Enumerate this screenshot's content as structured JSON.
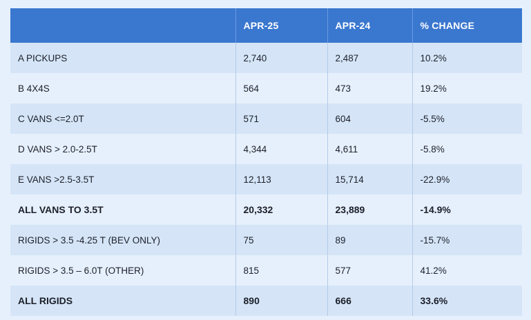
{
  "header": {
    "col_label": "",
    "col_apr25": "APR-25",
    "col_apr24": "APR-24",
    "col_change": "% CHANGE"
  },
  "rows": [
    {
      "label": "A PICKUPS",
      "apr25": "2,740",
      "apr24": "2,487",
      "change": "10.2%"
    },
    {
      "label": "B 4X4S",
      "apr25": "564",
      "apr24": "473",
      "change": "19.2%"
    },
    {
      "label": "C VANS <=2.0T",
      "apr25": "571",
      "apr24": "604",
      "change": "-5.5%"
    },
    {
      "label": "D VANS > 2.0-2.5T",
      "apr25": "4,344",
      "apr24": "4,611",
      "change": "-5.8%"
    },
    {
      "label": "E VANS >2.5-3.5T",
      "apr25": "12,113",
      "apr24": "15,714",
      "change": "-22.9%"
    },
    {
      "label": "ALL VANS TO 3.5T",
      "apr25": "20,332",
      "apr24": "23,889",
      "change": "-14.9%"
    },
    {
      "label": "RIGIDS > 3.5 -4.25 T (BEV ONLY)",
      "apr25": "75",
      "apr24": "89",
      "change": "-15.7%"
    },
    {
      "label": "RIGIDS > 3.5 – 6.0T (OTHER)",
      "apr25": "815",
      "apr24": "577",
      "change": "41.2%"
    },
    {
      "label": "ALL RIGIDS",
      "apr25": "890",
      "apr24": "666",
      "change": "33.6%"
    }
  ],
  "colors": {
    "header_bg": "#3a77cf",
    "row_alt_bg": "#d5e5f7",
    "row_plain_bg": "#e6f0fc"
  }
}
